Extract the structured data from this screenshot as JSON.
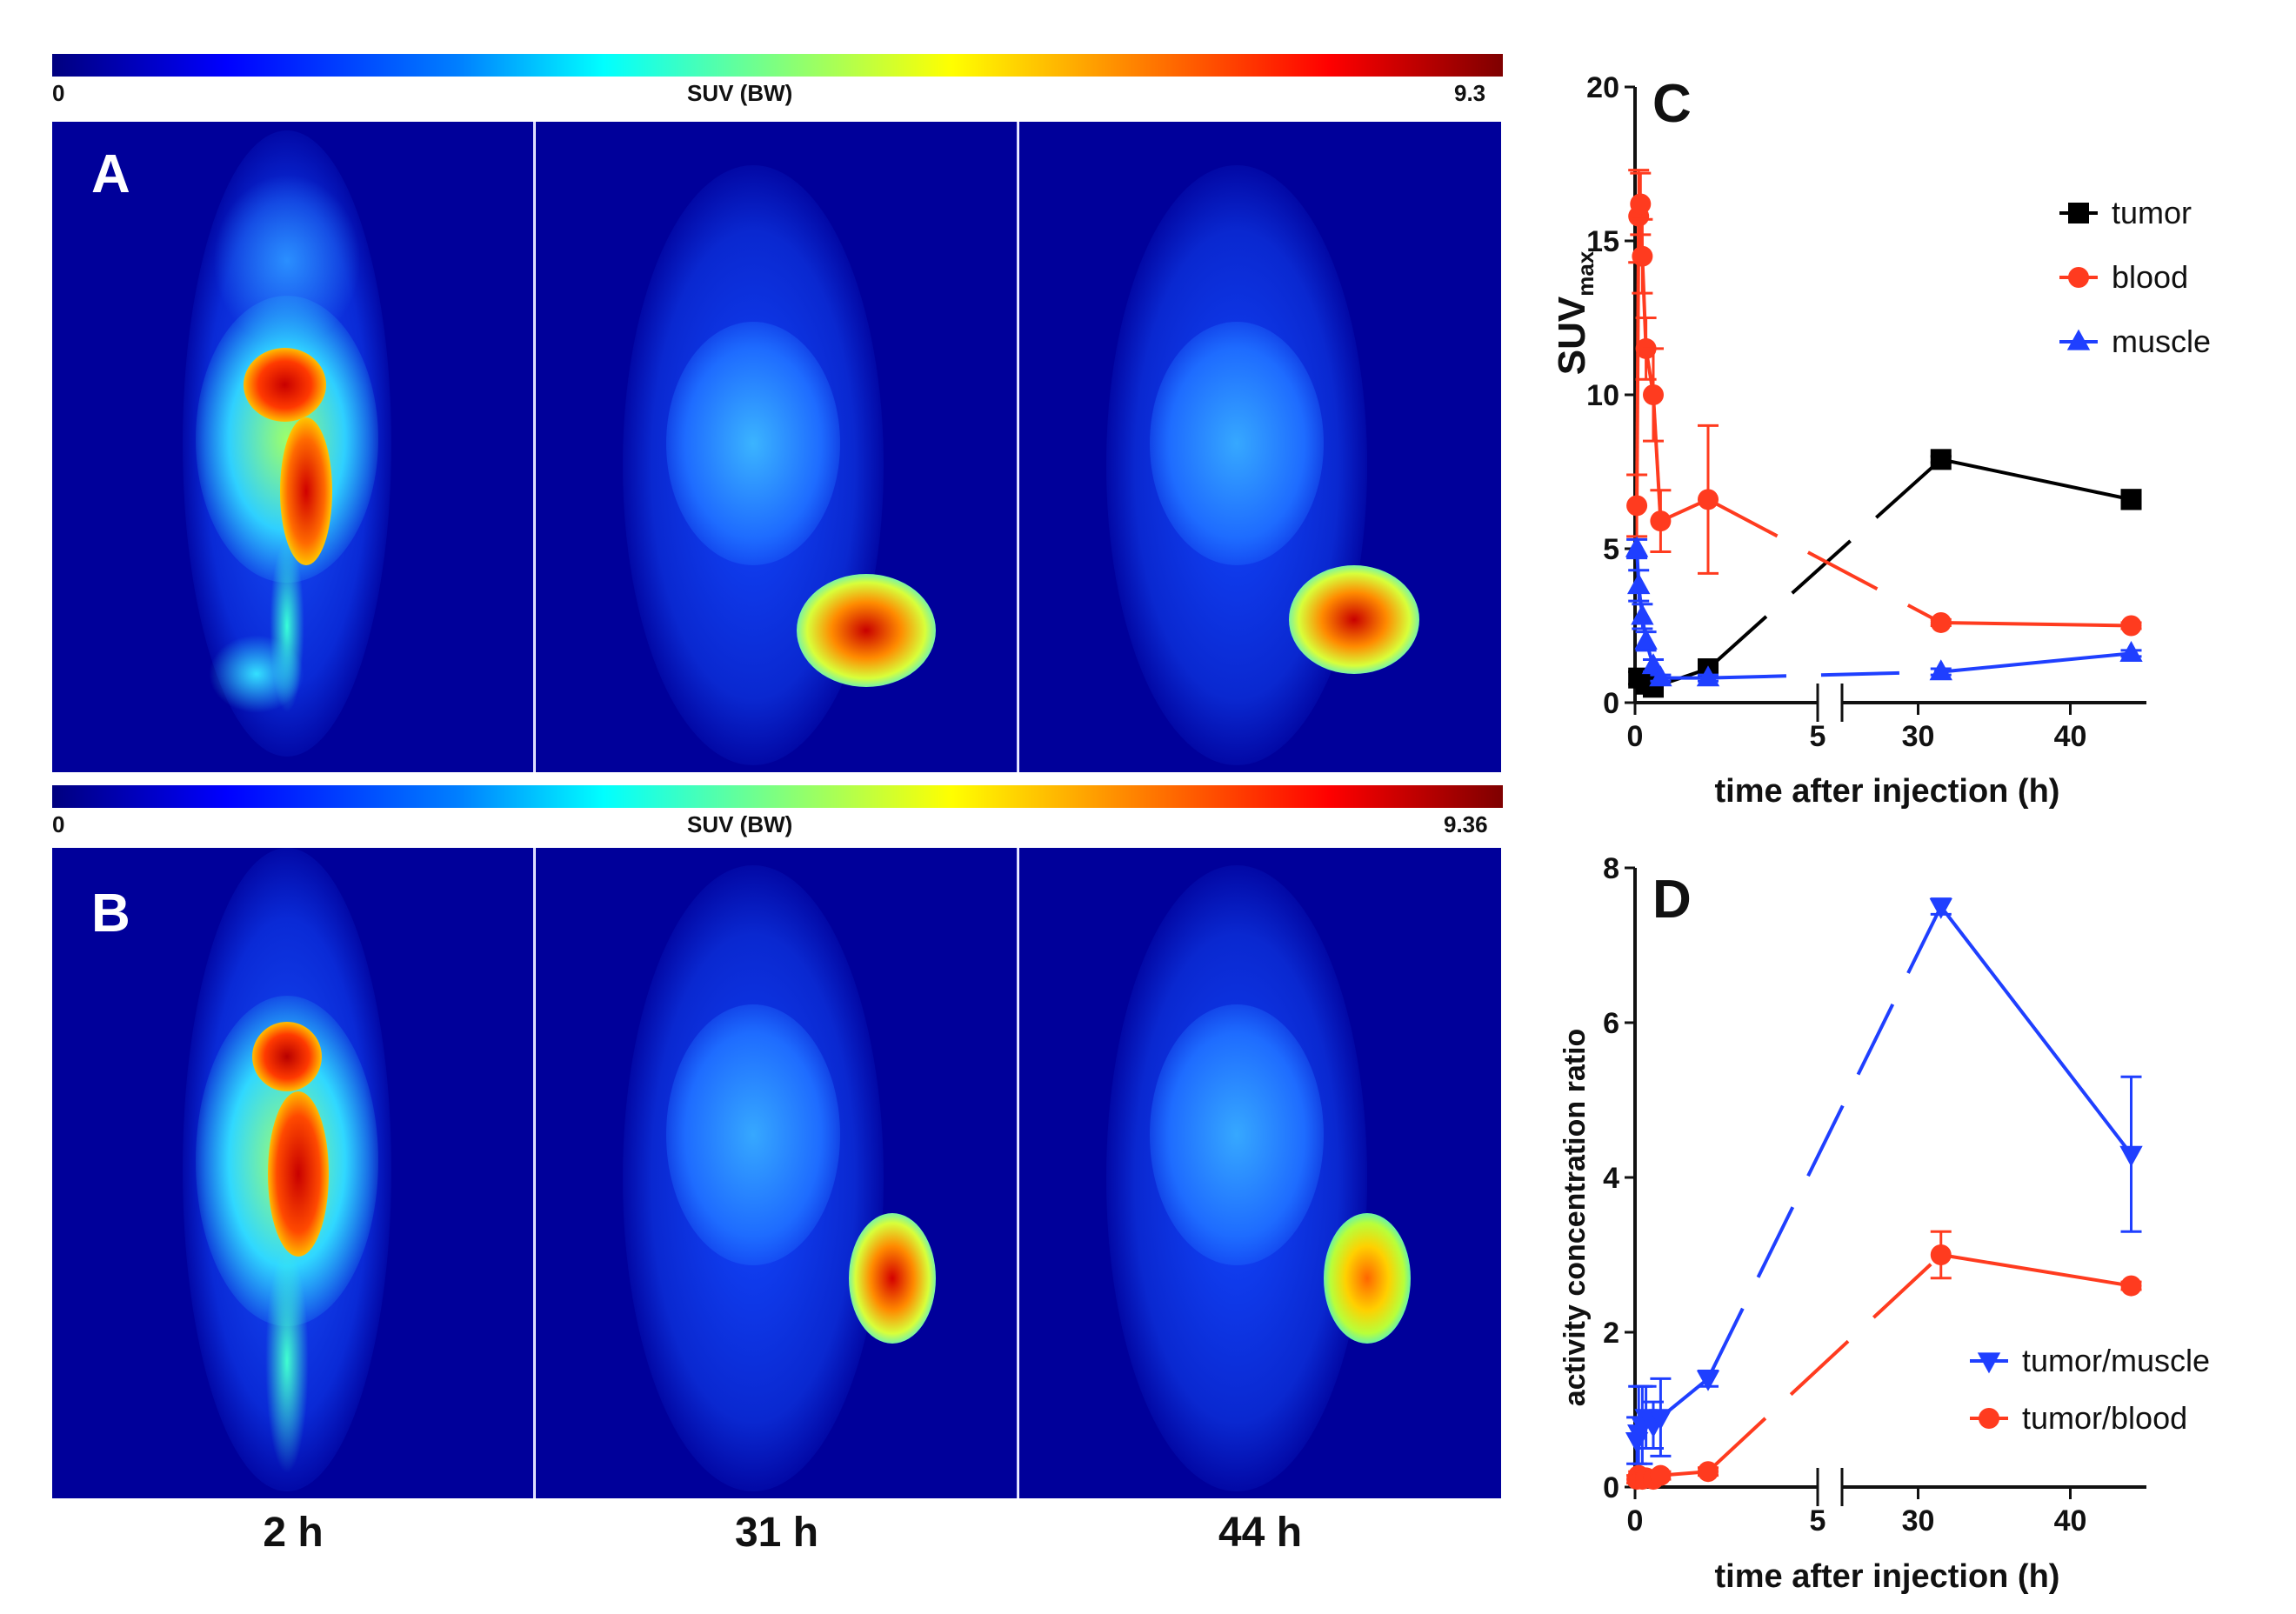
{
  "colorbar_top": {
    "min_label": "0",
    "title": "SUV (BW)",
    "max_label": "9.3"
  },
  "colorbar_bottom": {
    "min_label": "0",
    "title": "SUV (BW)",
    "max_label": "9.36"
  },
  "panel_a_label": "A",
  "panel_b_label": "B",
  "time_labels": [
    "2 h",
    "31 h",
    "44 h"
  ],
  "chart_data": [
    {
      "panel": "C",
      "type": "line",
      "xlabel": "time after injection (h)",
      "ylabel": "SUV",
      "ylabel_sub": "max",
      "ylim": [
        0,
        20
      ],
      "yticks": [
        "0",
        "5",
        "10",
        "15",
        "20"
      ],
      "x_segments": [
        {
          "range": [
            0,
            5
          ],
          "ticks": [
            "0",
            "5"
          ]
        },
        {
          "range": [
            25,
            45
          ],
          "ticks": [
            "30",
            "40"
          ]
        }
      ],
      "series": [
        {
          "name": "tumor",
          "color": "#000000",
          "marker": "square",
          "x": [
            0.1,
            0.3,
            0.5,
            2.0,
            31.5,
            44
          ],
          "y": [
            0.8,
            0.6,
            0.5,
            1.1,
            7.9,
            6.6
          ],
          "err": [
            0.2,
            0.2,
            0.1,
            0.2,
            0.1,
            0.3
          ]
        },
        {
          "name": "blood",
          "color": "#ff3b1f",
          "marker": "circle",
          "x": [
            0.05,
            0.1,
            0.15,
            0.2,
            0.3,
            0.5,
            0.7,
            2.0,
            31.5,
            44
          ],
          "y": [
            6.4,
            15.8,
            16.2,
            14.5,
            11.5,
            10.0,
            5.9,
            6.6,
            2.6,
            2.5
          ],
          "err": [
            1.0,
            1.5,
            1.0,
            1.2,
            1.0,
            1.5,
            1.0,
            2.4,
            0.1,
            0.1
          ]
        },
        {
          "name": "muscle",
          "color": "#1f3fff",
          "marker": "triangle",
          "x": [
            0.05,
            0.1,
            0.2,
            0.3,
            0.5,
            0.7,
            2.0,
            31.5,
            44
          ],
          "y": [
            5.0,
            3.8,
            2.8,
            2.0,
            1.2,
            0.8,
            0.8,
            1.0,
            1.6
          ],
          "err": [
            0.3,
            0.5,
            0.4,
            0.3,
            0.2,
            0.1,
            0.1,
            0.1,
            0.1
          ]
        }
      ],
      "legend_position": "top-right"
    },
    {
      "panel": "D",
      "type": "line",
      "xlabel": "time after injection (h)",
      "ylabel": "activity concentration ratio",
      "ylim": [
        0,
        8
      ],
      "yticks": [
        "0",
        "2",
        "4",
        "6",
        "8"
      ],
      "x_segments": [
        {
          "range": [
            0,
            5
          ],
          "ticks": [
            "0",
            "5"
          ]
        },
        {
          "range": [
            25,
            45
          ],
          "ticks": [
            "30",
            "40"
          ]
        }
      ],
      "series": [
        {
          "name": "tumor/muscle",
          "color": "#1f3fff",
          "marker": "triangle-down",
          "x": [
            0.05,
            0.1,
            0.2,
            0.3,
            0.5,
            0.7,
            2.0,
            31.5,
            44
          ],
          "y": [
            0.6,
            0.7,
            0.8,
            0.9,
            0.8,
            0.9,
            1.4,
            7.5,
            4.3
          ],
          "err": [
            0.3,
            0.6,
            0.5,
            0.4,
            0.3,
            0.5,
            0.1,
            0.1,
            1.0
          ]
        },
        {
          "name": "tumor/blood",
          "color": "#ff3b1f",
          "marker": "circle",
          "x": [
            0.05,
            0.1,
            0.2,
            0.3,
            0.5,
            0.7,
            2.0,
            31.5,
            44
          ],
          "y": [
            0.1,
            0.15,
            0.1,
            0.12,
            0.1,
            0.15,
            0.2,
            3.0,
            2.6
          ],
          "err": [
            0.05,
            0.05,
            0.05,
            0.05,
            0.05,
            0.05,
            0.05,
            0.3,
            0.05
          ]
        }
      ],
      "legend_position": "bottom-right"
    }
  ]
}
